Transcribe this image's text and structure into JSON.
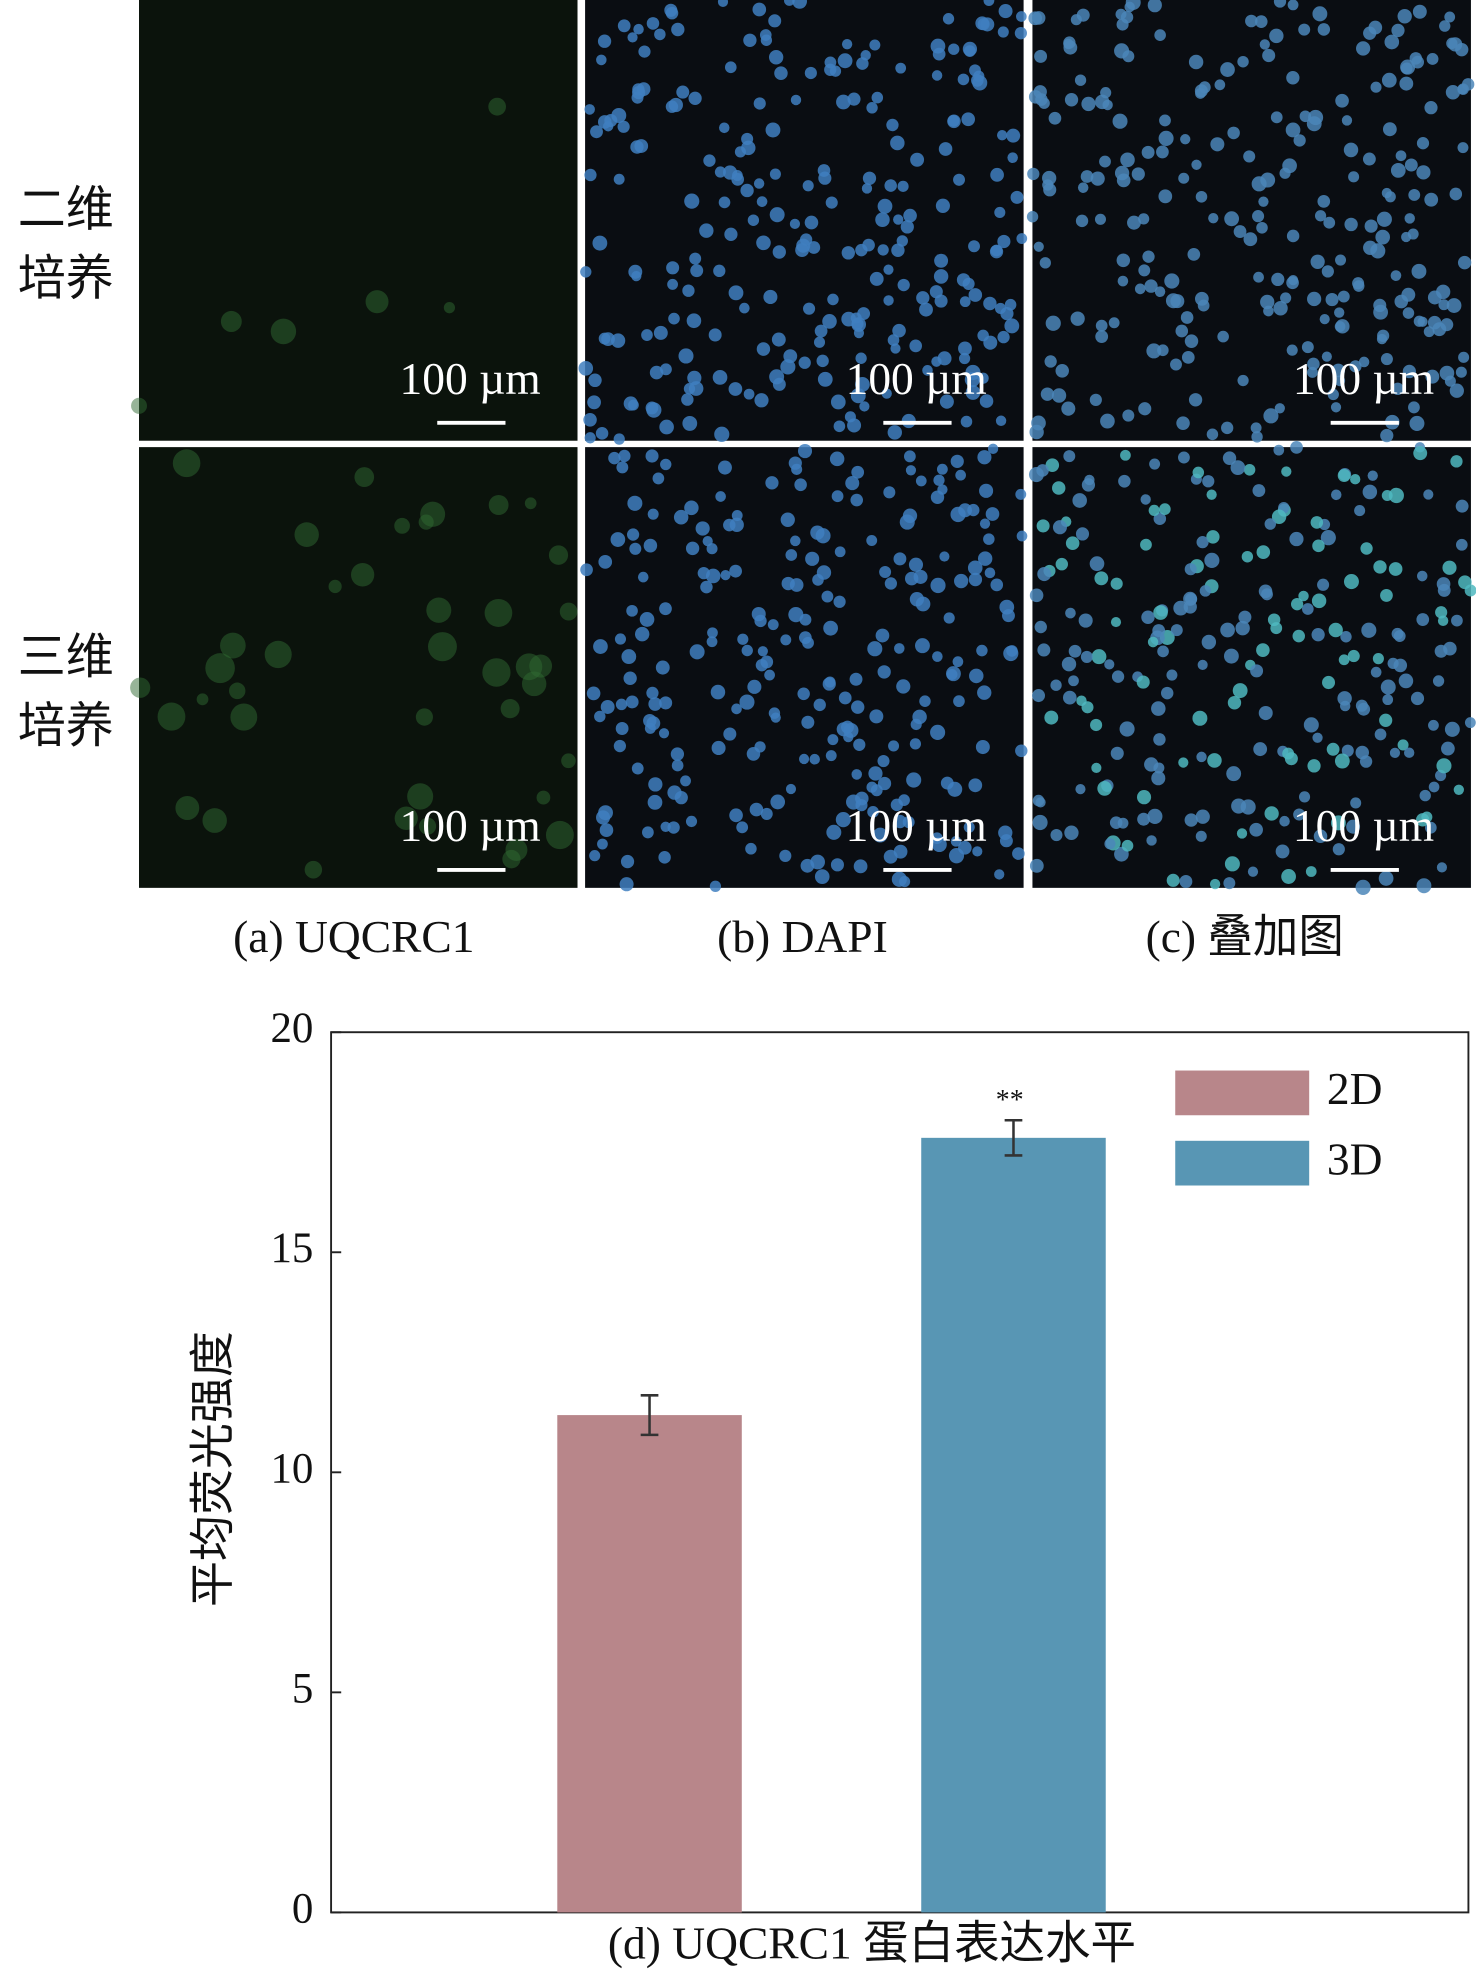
{
  "row_labels": [
    [
      "二维",
      "培养"
    ],
    [
      "三维",
      "培养"
    ]
  ],
  "column_labels": [
    "(a) UQCRC1",
    "(b) DAPI",
    "(c) 叠加图"
  ],
  "scale_bar_label": "100 µm",
  "chart_data": {
    "type": "bar",
    "xlabel": "(d) UQCRC1 蛋白表达水平",
    "ylabel": "平均荧光强度",
    "categories": [
      null
    ],
    "series": [
      {
        "name": "2D",
        "color": "#b8868a",
        "values": [
          11.3
        ],
        "errors": [
          0.45
        ]
      },
      {
        "name": "3D",
        "color": "#5896b4",
        "values": [
          17.6
        ],
        "errors": [
          0.4
        ]
      }
    ],
    "annotation": "**",
    "ylim": [
      0,
      20
    ],
    "yticks": [
      0,
      5,
      10,
      15,
      20
    ],
    "legend": "upper right"
  }
}
